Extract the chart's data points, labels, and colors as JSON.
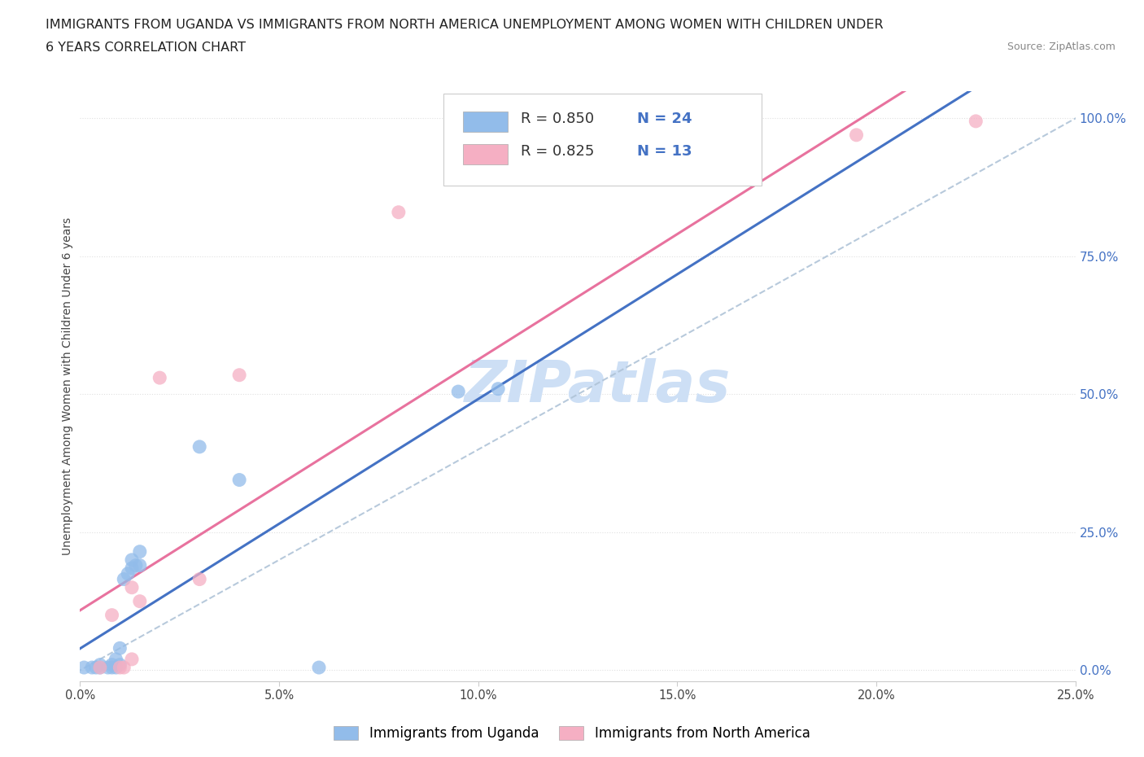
{
  "title_line1": "IMMIGRANTS FROM UGANDA VS IMMIGRANTS FROM NORTH AMERICA UNEMPLOYMENT AMONG WOMEN WITH CHILDREN UNDER",
  "title_line2": "6 YEARS CORRELATION CHART",
  "source": "Source: ZipAtlas.com",
  "ylabel": "Unemployment Among Women with Children Under 6 years",
  "right_ytick_labels": [
    "0.0%",
    "25.0%",
    "50.0%",
    "75.0%",
    "100.0%"
  ],
  "right_ytick_values": [
    0.0,
    0.25,
    0.5,
    0.75,
    1.0
  ],
  "xtick_labels": [
    "0.0%",
    "5.0%",
    "10.0%",
    "15.0%",
    "20.0%",
    "25.0%"
  ],
  "xtick_values": [
    0.0,
    0.05,
    0.1,
    0.15,
    0.2,
    0.25
  ],
  "xlim": [
    0.0,
    0.25
  ],
  "ylim": [
    -0.02,
    1.05
  ],
  "legend_r1_label": "R = 0.850",
  "legend_r1_n": "N = 24",
  "legend_r2_label": "R = 0.825",
  "legend_r2_n": "N = 13",
  "uganda_color": "#92bcea",
  "north_america_color": "#f5afc3",
  "uganda_line_color": "#4472c4",
  "north_america_line_color": "#e8729e",
  "ref_line_color": "#b0c4d8",
  "uganda_x": [
    0.001,
    0.003,
    0.004,
    0.005,
    0.005,
    0.007,
    0.008,
    0.008,
    0.009,
    0.009,
    0.01,
    0.01,
    0.011,
    0.012,
    0.013,
    0.013,
    0.014,
    0.015,
    0.015,
    0.03,
    0.04,
    0.06,
    0.095,
    0.105
  ],
  "uganda_y": [
    0.005,
    0.005,
    0.005,
    0.005,
    0.01,
    0.005,
    0.005,
    0.01,
    0.005,
    0.02,
    0.01,
    0.04,
    0.165,
    0.175,
    0.185,
    0.2,
    0.19,
    0.19,
    0.215,
    0.405,
    0.345,
    0.005,
    0.505,
    0.51
  ],
  "north_america_x": [
    0.005,
    0.008,
    0.01,
    0.011,
    0.013,
    0.013,
    0.015,
    0.02,
    0.03,
    0.04,
    0.08,
    0.195,
    0.225
  ],
  "north_america_y": [
    0.005,
    0.1,
    0.005,
    0.005,
    0.02,
    0.15,
    0.125,
    0.53,
    0.165,
    0.535,
    0.83,
    0.97,
    0.995
  ],
  "background_color": "#ffffff",
  "watermark_text": "ZIPatlas",
  "watermark_color": "#cddff5",
  "grid_color": "#e0e0e0",
  "bottom_legend_label1": "Immigrants from Uganda",
  "bottom_legend_label2": "Immigrants from North America",
  "legend_text_color": "#333333",
  "legend_num_color": "#4472c4",
  "title_fontsize": 11.5,
  "axis_label_fontsize": 10,
  "tick_fontsize": 10.5,
  "legend_fontsize": 13
}
